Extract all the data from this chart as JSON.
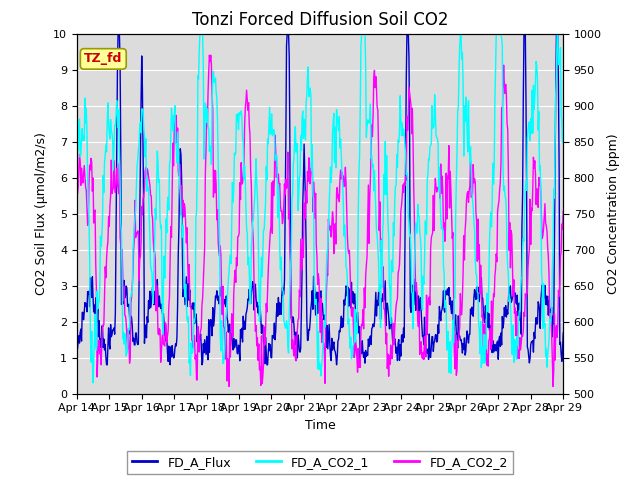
{
  "title": "Tonzi Forced Diffusion Soil CO2",
  "xlabel": "Time",
  "ylabel_left": "CO2 Soil Flux (μmol/m2/s)",
  "ylabel_right": "CO2 Concentration (ppm)",
  "xlim": [
    0,
    15
  ],
  "ylim_left": [
    0.0,
    10.0
  ],
  "ylim_right": [
    500,
    1000
  ],
  "xtick_labels": [
    "Apr 14",
    "Apr 15",
    "Apr 16",
    "Apr 17",
    "Apr 18",
    "Apr 19",
    "Apr 20",
    "Apr 21",
    "Apr 22",
    "Apr 23",
    "Apr 24",
    "Apr 25",
    "Apr 26",
    "Apr 27",
    "Apr 28",
    "Apr 29"
  ],
  "color_flux": "#0000CD",
  "color_co2_1": "#00FFFF",
  "color_co2_2": "#FF00FF",
  "legend_labels": [
    "FD_A_Flux",
    "FD_A_CO2_1",
    "FD_A_CO2_2"
  ],
  "annotation_text": "TZ_fd",
  "annotation_color": "#CC0000",
  "annotation_bg": "#FFFF99",
  "background_color": "#DCDCDC",
  "title_fontsize": 12,
  "label_fontsize": 9,
  "tick_fontsize": 8,
  "linewidth": 1.0
}
